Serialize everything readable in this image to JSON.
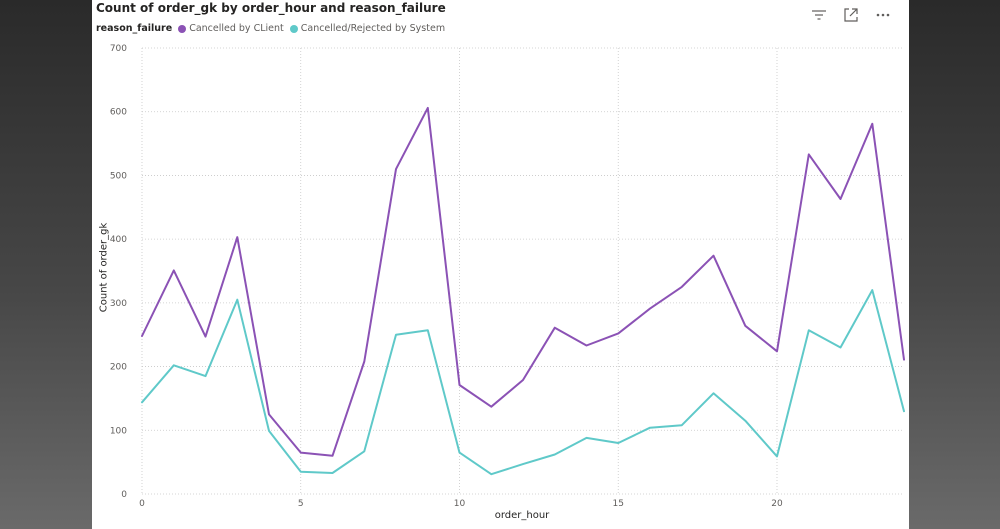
{
  "visual": {
    "title": "Count of order_gk by order_hour and reason_failure",
    "toolbar": [
      {
        "name": "filter-icon"
      },
      {
        "name": "focus-mode-icon"
      },
      {
        "name": "more-options-icon"
      }
    ]
  },
  "colors": {
    "series_1": "#8b52b5",
    "series_2": "#5fc9c9",
    "grid": "#c8c8c8",
    "tick_text": "#605e5c"
  },
  "chart_data": {
    "type": "line",
    "title": "Count of order_gk by order_hour and reason_failure",
    "xlabel": "order_hour",
    "ylabel": "Count of order_gk",
    "legend_title": "reason_failure",
    "legend_position": "top-left",
    "xlim": [
      0,
      24
    ],
    "ylim": [
      0,
      700
    ],
    "x_ticks": [
      0,
      5,
      10,
      15,
      20
    ],
    "y_ticks": [
      0,
      100,
      200,
      300,
      400,
      500,
      600,
      700
    ],
    "grid": true,
    "x": [
      0,
      1,
      2,
      3,
      4,
      5,
      6,
      7,
      8,
      9,
      10,
      11,
      12,
      13,
      14,
      15,
      16,
      17,
      18,
      19,
      20,
      21,
      22,
      23,
      24
    ],
    "series": [
      {
        "name": "Cancelled by CLient",
        "color": "#8b52b5",
        "values": [
          248,
          351,
          247,
          403,
          125,
          65,
          60,
          208,
          510,
          606,
          171,
          137,
          179,
          261,
          233,
          252,
          291,
          325,
          374,
          264,
          224,
          533,
          463,
          581,
          211
        ]
      },
      {
        "name": "Cancelled/Rejected by System",
        "color": "#5fc9c9",
        "values": [
          144,
          202,
          185,
          305,
          99,
          35,
          33,
          67,
          250,
          257,
          65,
          31,
          47,
          62,
          88,
          80,
          104,
          108,
          158,
          115,
          59,
          257,
          230,
          320,
          130
        ]
      }
    ]
  }
}
